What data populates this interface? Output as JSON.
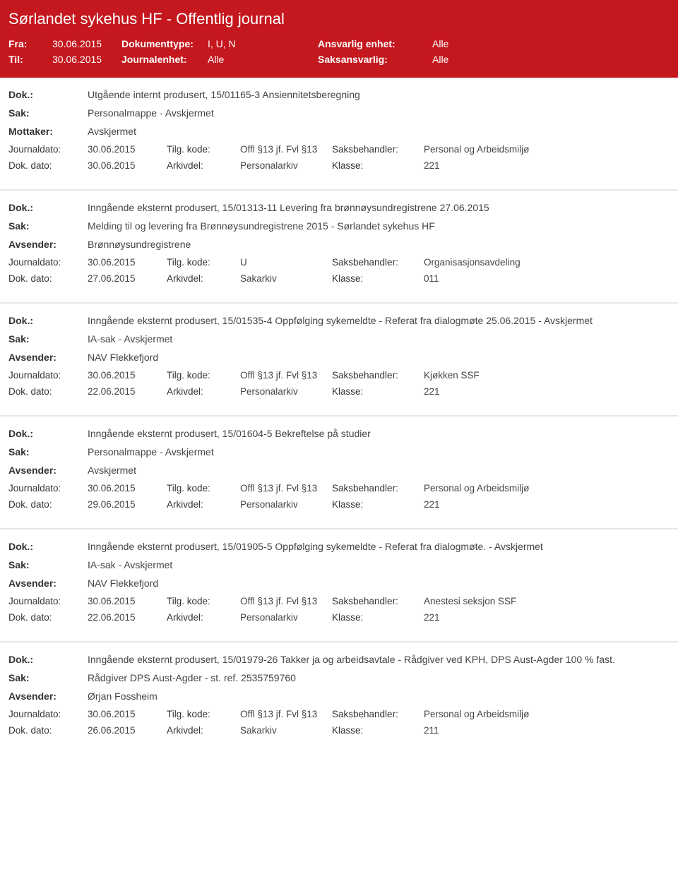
{
  "colors": {
    "header_bg": "#c4171e",
    "header_text": "#ffffff",
    "body_text": "#444444",
    "label_text": "#333333",
    "divider": "#e6e6e6"
  },
  "header": {
    "title": "Sørlandet sykehus HF - Offentlig journal",
    "fra_label": "Fra:",
    "fra_value": "30.06.2015",
    "til_label": "Til:",
    "til_value": "30.06.2015",
    "dokumenttype_label": "Dokumenttype:",
    "dokumenttype_value": "I, U, N",
    "journalenhet_label": "Journalenhet:",
    "journalenhet_value": "Alle",
    "ansvarlig_label": "Ansvarlig enhet:",
    "ansvarlig_value": "Alle",
    "saksansvarlig_label": "Saksansvarlig:",
    "saksansvarlig_value": "Alle"
  },
  "labels": {
    "dok": "Dok.:",
    "sak": "Sak:",
    "mottaker": "Mottaker:",
    "avsender": "Avsender:",
    "journaldato": "Journaldato:",
    "dokdato": "Dok. dato:",
    "tilgkode": "Tilg. kode:",
    "arkivdel": "Arkivdel:",
    "saksbehandler": "Saksbehandler:",
    "klasse": "Klasse:"
  },
  "entries": [
    {
      "dok": "Utgående internt produsert, 15/01165-3 Ansiennitetsberegning",
      "sak": "Personalmappe - Avskjermet",
      "party_label": "Mottaker:",
      "party_value": "Avskjermet",
      "journaldato": "30.06.2015",
      "tilgkode": "Offl §13 jf. Fvl §13",
      "saksbehandler": "Personal og Arbeidsmiljø",
      "dokdato": "30.06.2015",
      "arkivdel": "Personalarkiv",
      "klasse": "221"
    },
    {
      "dok": "Inngående eksternt produsert, 15/01313-11 Levering fra brønnøysundregistrene 27.06.2015",
      "sak": "Melding til og levering fra Brønnøysundregistrene 2015 - Sørlandet sykehus HF",
      "party_label": "Avsender:",
      "party_value": "Brønnøysundregistrene",
      "journaldato": "30.06.2015",
      "tilgkode": "U",
      "saksbehandler": "Organisasjonsavdeling",
      "dokdato": "27.06.2015",
      "arkivdel": "Sakarkiv",
      "klasse": "011"
    },
    {
      "dok": "Inngående eksternt produsert, 15/01535-4 Oppfølging sykemeldte - Referat fra dialogmøte 25.06.2015 - Avskjermet",
      "sak": "IA-sak - Avskjermet",
      "party_label": "Avsender:",
      "party_value": "NAV Flekkefjord",
      "journaldato": "30.06.2015",
      "tilgkode": "Offl §13 jf. Fvl §13",
      "saksbehandler": "Kjøkken SSF",
      "dokdato": "22.06.2015",
      "arkivdel": "Personalarkiv",
      "klasse": "221"
    },
    {
      "dok": "Inngående eksternt produsert, 15/01604-5 Bekreftelse på studier",
      "sak": "Personalmappe - Avskjermet",
      "party_label": "Avsender:",
      "party_value": "Avskjermet",
      "journaldato": "30.06.2015",
      "tilgkode": "Offl §13 jf. Fvl §13",
      "saksbehandler": "Personal og Arbeidsmiljø",
      "dokdato": "29.06.2015",
      "arkivdel": "Personalarkiv",
      "klasse": "221"
    },
    {
      "dok": "Inngående eksternt produsert, 15/01905-5 Oppfølging sykemeldte - Referat fra dialogmøte. - Avskjermet",
      "sak": "IA-sak - Avskjermet",
      "party_label": "Avsender:",
      "party_value": "NAV Flekkefjord",
      "journaldato": "30.06.2015",
      "tilgkode": "Offl §13 jf. Fvl §13",
      "saksbehandler": "Anestesi seksjon SSF",
      "dokdato": "22.06.2015",
      "arkivdel": "Personalarkiv",
      "klasse": "221"
    },
    {
      "dok": "Inngående eksternt produsert, 15/01979-26 Takker ja og arbeidsavtale - Rådgiver ved KPH, DPS Aust-Agder 100 % fast.",
      "sak": "Rådgiver DPS Aust-Agder - st. ref. 2535759760",
      "party_label": "Avsender:",
      "party_value": "Ørjan Fossheim",
      "journaldato": "30.06.2015",
      "tilgkode": "Offl §13 jf. Fvl §13",
      "saksbehandler": "Personal og Arbeidsmiljø",
      "dokdato": "26.06.2015",
      "arkivdel": "Sakarkiv",
      "klasse": "211"
    }
  ]
}
